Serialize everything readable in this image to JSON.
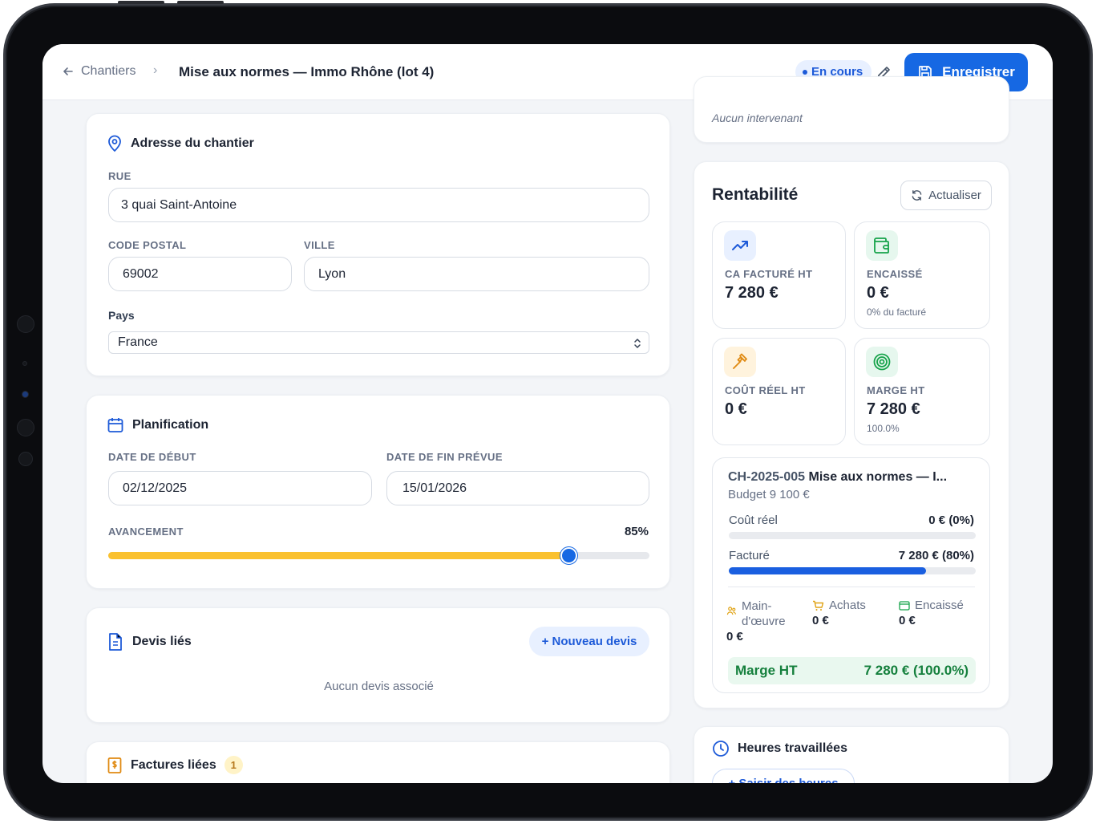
{
  "header": {
    "back_label": "Chantiers",
    "separator": "›",
    "title": "Mise aux normes — Immo Rhône (lot 4)",
    "status": "En cours",
    "save_label": "Enregistrer"
  },
  "address": {
    "title": "Adresse du chantier",
    "street_label": "RUE",
    "street_value": "3 quai Saint-Antoine",
    "postal_label": "CODE POSTAL",
    "postal_value": "69002",
    "city_label": "VILLE",
    "city_value": "Lyon",
    "country_label": "Pays",
    "country_value": "France"
  },
  "planning": {
    "title": "Planification",
    "start_label": "DATE DE DÉBUT",
    "start_value": "02/12/2025",
    "end_label": "DATE DE FIN PRÉVUE",
    "end_value": "15/01/2026",
    "progress_label": "AVANCEMENT",
    "progress_text": "85%",
    "progress_value": 0.85
  },
  "quotes": {
    "title": "Devis liés",
    "new_button": "+ Nouveau devis",
    "empty": "Aucun devis associé"
  },
  "invoices": {
    "title": "Factures liées",
    "count": "1"
  },
  "contributors": {
    "empty": "Aucun intervenant"
  },
  "profitability": {
    "title": "Rentabilité",
    "refresh": "Actualiser",
    "stats": [
      {
        "label": "CA FACTURÉ HT",
        "value": "7 280 €",
        "sub": "",
        "icon": "trending-up-icon",
        "color": "#1d5ad8",
        "bg": "#e8f0ff"
      },
      {
        "label": "ENCAISSÉ",
        "value": "0 €",
        "sub": "0% du facturé",
        "icon": "wallet-icon",
        "color": "#16a34a",
        "bg": "#e6f7ee"
      },
      {
        "label": "COÛT RÉEL HT",
        "value": "0 €",
        "sub": "",
        "icon": "hammer-icon",
        "color": "#e08a12",
        "bg": "#fff3dd"
      },
      {
        "label": "MARGE HT",
        "value": "7 280 €",
        "sub": "100.0%",
        "icon": "target-icon",
        "color": "#16a34a",
        "bg": "#e6f7ee"
      }
    ],
    "project": {
      "code": "CH-2025-005",
      "name": "Mise aux normes — I...",
      "budget": "Budget 9 100 €",
      "cost_label": "Coût réel",
      "cost_value": "0 € (0%)",
      "cost_ratio": 0,
      "invoiced_label": "Facturé",
      "invoiced_value": "7 280 € (80%)",
      "invoiced_ratio": 0.8,
      "labor_label": "Main-d'œuvre",
      "labor_value": "0 €",
      "purchases_label": "Achats",
      "purchases_value": "0 €",
      "collected_label": "Encaissé",
      "collected_value": "0 €",
      "margin_label": "Marge HT",
      "margin_value": "7 280 € (100.0%)"
    }
  },
  "hours": {
    "title": "Heures travaillées",
    "button": "+ Saisir des heures"
  }
}
